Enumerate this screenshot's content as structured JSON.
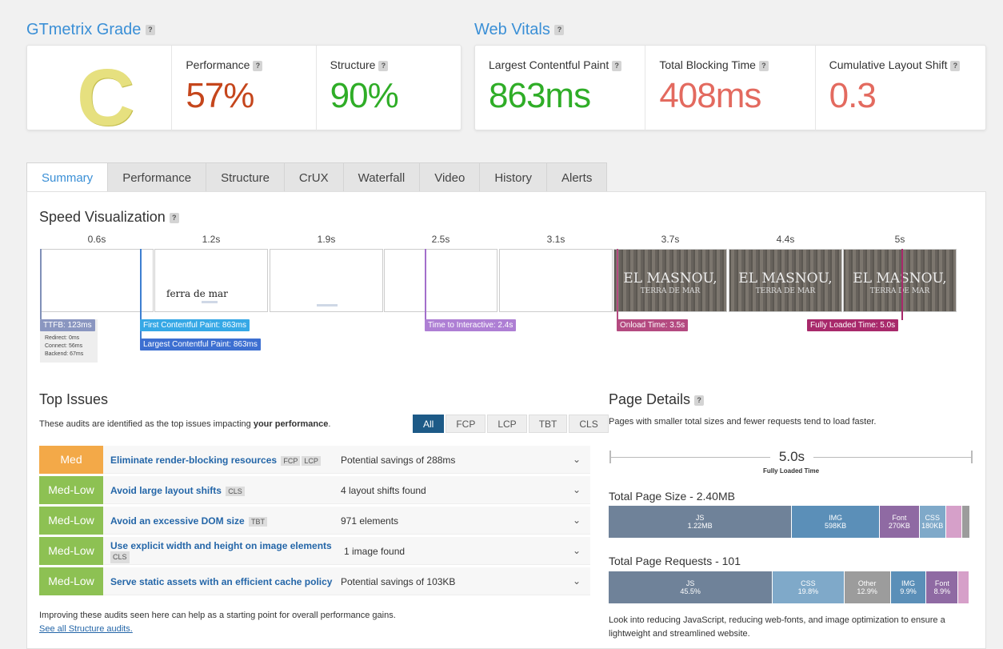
{
  "gtmetrix": {
    "title": "GTmetrix Grade",
    "grade": "C",
    "performance_label": "Performance",
    "performance_value": "57%",
    "structure_label": "Structure",
    "structure_value": "90%"
  },
  "vitals": {
    "title": "Web Vitals",
    "lcp_label": "Largest Contentful Paint",
    "lcp_value": "863ms",
    "tbt_label": "Total Blocking Time",
    "tbt_value": "408ms",
    "cls_label": "Cumulative Layout Shift",
    "cls_value": "0.3"
  },
  "colors": {
    "blue": "#3a8fd6",
    "green": "#2fad27",
    "orange_red": "#c5461c",
    "red": "#e36a5f",
    "grade_c": "#e6e07f",
    "med": "#f3a948",
    "med_low": "#8dc153"
  },
  "tabs": [
    "Summary",
    "Performance",
    "Structure",
    "CrUX",
    "Waterfall",
    "Video",
    "History",
    "Alerts"
  ],
  "speed": {
    "title": "Speed Visualization",
    "timestamps": [
      "0.6s",
      "1.2s",
      "1.9s",
      "2.5s",
      "3.1s",
      "3.7s",
      "4.4s",
      "5s"
    ],
    "frame2_text": "ferra de mar",
    "frame_title": "EL MASNOU,",
    "frame_subtitle": "TERRA DE MAR",
    "ttfb": "TTFB: 123ms",
    "redirect": "Redirect: 0ms",
    "connect": "Connect: 56ms",
    "backend": "Backend: 67ms",
    "fcp": "First Contentful Paint: 863ms",
    "lcp": "Largest Contentful Paint: 863ms",
    "tti": "Time to Interactive: 2.4s",
    "onload": "Onload Time: 3.5s",
    "fully_loaded": "Fully Loaded Time: 5.0s"
  },
  "issues": {
    "title": "Top Issues",
    "intro_pre": "These audits are identified as the top issues impacting ",
    "intro_bold": "your performance",
    "intro_post": ".",
    "filters": [
      "All",
      "FCP",
      "LCP",
      "TBT",
      "CLS"
    ],
    "rows": [
      {
        "severity": "Med",
        "title": "Eliminate render-blocking resources",
        "tags": [
          "FCP",
          "LCP"
        ],
        "desc": "Potential savings of 288ms"
      },
      {
        "severity": "Med-Low",
        "title": "Avoid large layout shifts",
        "tags": [
          "CLS"
        ],
        "desc": "4 layout shifts found"
      },
      {
        "severity": "Med-Low",
        "title": "Avoid an excessive DOM size",
        "tags": [
          "TBT"
        ],
        "desc": "971 elements"
      },
      {
        "severity": "Med-Low",
        "title": "Use explicit width and height on image elements",
        "tags": [
          "CLS"
        ],
        "desc": "1 image found"
      },
      {
        "severity": "Med-Low",
        "title": "Serve static assets with an efficient cache policy",
        "tags": [],
        "desc": "Potential savings of 103KB"
      }
    ],
    "footer": "Improving these audits seen here can help as a starting point for overall performance gains.",
    "link": "See all Structure audits."
  },
  "details": {
    "title": "Page Details",
    "intro": "Pages with smaller total sizes and fewer requests tend to load faster.",
    "fully_loaded_value": "5.0s",
    "fully_loaded_label": "Fully Loaded Time",
    "size_title": "Total Page Size - 2.40MB",
    "size_segments": [
      {
        "name": "JS",
        "value": "1.22MB",
        "share": 0.507,
        "color": "#6f8299"
      },
      {
        "name": "IMG",
        "value": "598KB",
        "share": 0.243,
        "color": "#5b8fb8"
      },
      {
        "name": "Font",
        "value": "270KB",
        "share": 0.11,
        "color": "#8f6aa3"
      },
      {
        "name": "CSS",
        "value": "180KB",
        "share": 0.073,
        "color": "#7fa9c9"
      },
      {
        "name": "",
        "value": "",
        "share": 0.045,
        "color": "#d6a0c9"
      },
      {
        "name": "",
        "value": "",
        "share": 0.022,
        "color": "#9c9c9c"
      }
    ],
    "requests_title": "Total Page Requests - 101",
    "request_segments": [
      {
        "name": "JS",
        "value": "45.5%",
        "share": 0.455,
        "color": "#6f8299"
      },
      {
        "name": "CSS",
        "value": "19.8%",
        "share": 0.198,
        "color": "#7fa9c9"
      },
      {
        "name": "Other",
        "value": "12.9%",
        "share": 0.129,
        "color": "#9c9c9c"
      },
      {
        "name": "IMG",
        "value": "9.9%",
        "share": 0.099,
        "color": "#5b8fb8"
      },
      {
        "name": "Font",
        "value": "8.9%",
        "share": 0.089,
        "color": "#8f6aa3"
      },
      {
        "name": "",
        "value": "",
        "share": 0.03,
        "color": "#d6a0c9"
      }
    ],
    "footer": "Look into reducing JavaScript, reducing web-fonts, and image optimization to ensure a lightweight and streamlined website."
  }
}
